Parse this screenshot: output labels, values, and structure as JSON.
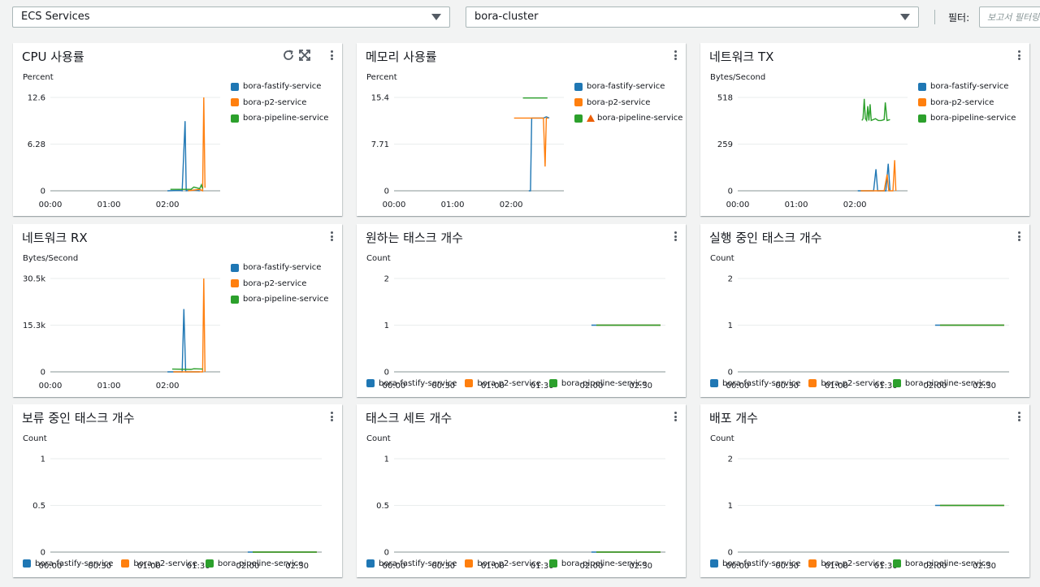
{
  "header": {
    "service_select": "ECS Services",
    "cluster_select": "bora-cluster",
    "filter_label": "필터:",
    "filter_placeholder": "보고서 필터링"
  },
  "colors": {
    "blue": "#1f77b4",
    "orange": "#ff7f0e",
    "green": "#2ca02c"
  },
  "series_names": [
    "bora-fastify-service",
    "bora-p2-service",
    "bora-pipeline-service"
  ],
  "icons": {
    "refresh": "refresh-icon",
    "fullscreen": "fullscreen-icon",
    "menu": "kebab-menu-icon",
    "warning": "warning-icon"
  },
  "chart_data": [
    {
      "type": "line",
      "title": "CPU 사용률",
      "ylabel": "Percent",
      "yticks": [
        "0",
        "6.28",
        "12.6"
      ],
      "ylim": [
        0,
        12.6
      ],
      "xticks": [
        "00:00",
        "01:00",
        "02:00"
      ],
      "x_range_hours": [
        0,
        2.9
      ],
      "legend": "right",
      "series": [
        {
          "name": "bora-fastify-service",
          "color": "#1f77b4",
          "points": [
            [
              2.0,
              0
            ],
            [
              2.2,
              0.05
            ],
            [
              2.25,
              0
            ],
            [
              2.3,
              9.4
            ],
            [
              2.32,
              0
            ],
            [
              2.45,
              0.1
            ],
            [
              2.55,
              0
            ]
          ]
        },
        {
          "name": "bora-p2-service",
          "color": "#ff7f0e",
          "points": [
            [
              2.35,
              0
            ],
            [
              2.55,
              0.2
            ],
            [
              2.6,
              0
            ],
            [
              2.62,
              12.6
            ],
            [
              2.64,
              0.4
            ]
          ]
        },
        {
          "name": "bora-pipeline-service",
          "color": "#2ca02c",
          "points": [
            [
              2.05,
              0.2
            ],
            [
              2.4,
              0.2
            ],
            [
              2.45,
              0.5
            ],
            [
              2.55,
              0.3
            ],
            [
              2.58,
              0.8
            ],
            [
              2.6,
              0.3
            ]
          ]
        }
      ]
    },
    {
      "type": "line",
      "title": "메모리 사용률",
      "ylabel": "Percent",
      "yticks": [
        "0",
        "7.71",
        "15.4"
      ],
      "ylim": [
        0,
        15.4
      ],
      "xticks": [
        "00:00",
        "01:00",
        "02:00"
      ],
      "x_range_hours": [
        0,
        2.9
      ],
      "legend": "right",
      "series": [
        {
          "name": "bora-fastify-service",
          "color": "#1f77b4",
          "points": [
            [
              2.3,
              0
            ],
            [
              2.33,
              0
            ],
            [
              2.35,
              12
            ],
            [
              2.55,
              12
            ],
            [
              2.6,
              12.2
            ],
            [
              2.65,
              12
            ]
          ]
        },
        {
          "name": "bora-p2-service",
          "color": "#ff7f0e",
          "points": [
            [
              2.05,
              12
            ],
            [
              2.3,
              12
            ],
            [
              2.4,
              12
            ],
            [
              2.55,
              12
            ],
            [
              2.58,
              4
            ],
            [
              2.6,
              12
            ],
            [
              2.63,
              12
            ]
          ]
        },
        {
          "name": "bora-pipeline-service",
          "color": "#2ca02c",
          "warning": true,
          "points": [
            [
              2.2,
              15.3
            ],
            [
              2.62,
              15.3
            ]
          ]
        }
      ]
    },
    {
      "type": "line",
      "title": "네트워크 TX",
      "ylabel": "Bytes/Second",
      "yticks": [
        "0",
        "259",
        "518"
      ],
      "ylim": [
        0,
        518
      ],
      "xticks": [
        "00:00",
        "01:00",
        "02:00"
      ],
      "x_range_hours": [
        0,
        2.9
      ],
      "legend": "right",
      "series": [
        {
          "name": "bora-fastify-service",
          "color": "#1f77b4",
          "points": [
            [
              2.05,
              0
            ],
            [
              2.3,
              0
            ],
            [
              2.32,
              0
            ],
            [
              2.36,
              120
            ],
            [
              2.39,
              0
            ],
            [
              2.5,
              0
            ],
            [
              2.53,
              0
            ],
            [
              2.57,
              150
            ],
            [
              2.6,
              0
            ]
          ]
        },
        {
          "name": "bora-p2-service",
          "color": "#ff7f0e",
          "points": [
            [
              2.1,
              0
            ],
            [
              2.4,
              0
            ],
            [
              2.5,
              0
            ],
            [
              2.55,
              90
            ],
            [
              2.58,
              0
            ],
            [
              2.6,
              0
            ],
            [
              2.65,
              0
            ],
            [
              2.68,
              170
            ],
            [
              2.7,
              0
            ]
          ]
        },
        {
          "name": "bora-pipeline-service",
          "color": "#2ca02c",
          "points": [
            [
              2.12,
              390
            ],
            [
              2.14,
              400
            ],
            [
              2.16,
              510
            ],
            [
              2.18,
              400
            ],
            [
              2.2,
              390
            ],
            [
              2.22,
              470
            ],
            [
              2.24,
              390
            ],
            [
              2.26,
              480
            ],
            [
              2.28,
              390
            ],
            [
              2.35,
              400
            ],
            [
              2.4,
              390
            ],
            [
              2.45,
              390
            ],
            [
              2.5,
              395
            ],
            [
              2.52,
              490
            ],
            [
              2.55,
              390
            ],
            [
              2.6,
              395
            ]
          ]
        }
      ]
    },
    {
      "type": "line",
      "title": "네트워크 RX",
      "ylabel": "Bytes/Second",
      "yticks": [
        "0",
        "15.3k",
        "30.5k"
      ],
      "ylim": [
        0,
        30500
      ],
      "xticks": [
        "00:00",
        "01:00",
        "02:00"
      ],
      "x_range_hours": [
        0,
        2.9
      ],
      "legend": "right",
      "series": [
        {
          "name": "bora-fastify-service",
          "color": "#1f77b4",
          "points": [
            [
              2.0,
              0
            ],
            [
              2.25,
              0
            ],
            [
              2.28,
              20500
            ],
            [
              2.31,
              0
            ],
            [
              2.55,
              0
            ]
          ]
        },
        {
          "name": "bora-p2-service",
          "color": "#ff7f0e",
          "points": [
            [
              2.1,
              0
            ],
            [
              2.45,
              0
            ],
            [
              2.6,
              0
            ],
            [
              2.62,
              30500
            ],
            [
              2.64,
              0
            ]
          ]
        },
        {
          "name": "bora-pipeline-service",
          "color": "#2ca02c",
          "points": [
            [
              2.08,
              900
            ],
            [
              2.4,
              800
            ],
            [
              2.45,
              1000
            ],
            [
              2.6,
              900
            ]
          ]
        }
      ]
    },
    {
      "type": "line",
      "title": "원하는 태스크 개수",
      "ylabel": "Count",
      "yticks": [
        "0",
        "1",
        "2"
      ],
      "ylim": [
        0,
        2
      ],
      "xticks": [
        "00:00",
        "00:30",
        "01:00",
        "01:30",
        "02:00",
        "02:30"
      ],
      "x_range_hours": [
        0,
        2.75
      ],
      "legend": "bottom",
      "series": [
        {
          "name": "bora-fastify-service",
          "color": "#1f77b4",
          "points": [
            [
              2.0,
              1
            ],
            [
              2.7,
              1
            ]
          ]
        },
        {
          "name": "bora-p2-service",
          "color": "#ff7f0e",
          "points": [
            [
              2.05,
              1
            ],
            [
              2.7,
              1
            ]
          ]
        },
        {
          "name": "bora-pipeline-service",
          "color": "#2ca02c",
          "points": [
            [
              2.05,
              1
            ],
            [
              2.7,
              1
            ]
          ]
        }
      ]
    },
    {
      "type": "line",
      "title": "실행 중인 태스크 개수",
      "ylabel": "Count",
      "yticks": [
        "0",
        "1",
        "2"
      ],
      "ylim": [
        0,
        2
      ],
      "xticks": [
        "00:00",
        "00:30",
        "01:00",
        "01:30",
        "02:00",
        "02:30"
      ],
      "x_range_hours": [
        0,
        2.75
      ],
      "legend": "bottom",
      "series": [
        {
          "name": "bora-fastify-service",
          "color": "#1f77b4",
          "points": [
            [
              2.0,
              1
            ],
            [
              2.7,
              1
            ]
          ]
        },
        {
          "name": "bora-p2-service",
          "color": "#ff7f0e",
          "points": [
            [
              2.05,
              1
            ],
            [
              2.7,
              1
            ]
          ]
        },
        {
          "name": "bora-pipeline-service",
          "color": "#2ca02c",
          "points": [
            [
              2.05,
              1
            ],
            [
              2.7,
              1
            ]
          ]
        }
      ]
    },
    {
      "type": "line",
      "title": "보류 중인 태스크 개수",
      "ylabel": "Count",
      "yticks": [
        "0",
        "0.5",
        "1"
      ],
      "ylim": [
        0,
        1
      ],
      "xticks": [
        "00:00",
        "00:30",
        "01:00",
        "01:30",
        "02:00",
        "02:30"
      ],
      "x_range_hours": [
        0,
        2.75
      ],
      "legend": "bottom",
      "series": [
        {
          "name": "bora-fastify-service",
          "color": "#1f77b4",
          "points": [
            [
              2.0,
              0
            ],
            [
              2.7,
              0
            ]
          ]
        },
        {
          "name": "bora-p2-service",
          "color": "#ff7f0e",
          "points": [
            [
              2.05,
              0
            ],
            [
              2.7,
              0
            ]
          ]
        },
        {
          "name": "bora-pipeline-service",
          "color": "#2ca02c",
          "points": [
            [
              2.05,
              0
            ],
            [
              2.7,
              0
            ]
          ]
        }
      ]
    },
    {
      "type": "line",
      "title": "태스크 세트 개수",
      "ylabel": "Count",
      "yticks": [
        "0",
        "0.5",
        "1"
      ],
      "ylim": [
        0,
        1
      ],
      "xticks": [
        "00:00",
        "00:30",
        "01:00",
        "01:30",
        "02:00",
        "02:30"
      ],
      "x_range_hours": [
        0,
        2.75
      ],
      "legend": "bottom",
      "series": [
        {
          "name": "bora-fastify-service",
          "color": "#1f77b4",
          "points": [
            [
              2.0,
              0
            ],
            [
              2.7,
              0
            ]
          ]
        },
        {
          "name": "bora-p2-service",
          "color": "#ff7f0e",
          "points": [
            [
              2.05,
              0
            ],
            [
              2.7,
              0
            ]
          ]
        },
        {
          "name": "bora-pipeline-service",
          "color": "#2ca02c",
          "points": [
            [
              2.05,
              0
            ],
            [
              2.7,
              0
            ]
          ]
        }
      ]
    },
    {
      "type": "line",
      "title": "배포 개수",
      "ylabel": "Count",
      "yticks": [
        "0",
        "1",
        "2"
      ],
      "ylim": [
        0,
        2
      ],
      "xticks": [
        "00:00",
        "00:30",
        "01:00",
        "01:30",
        "02:00",
        "02:30"
      ],
      "x_range_hours": [
        0,
        2.75
      ],
      "legend": "bottom",
      "series": [
        {
          "name": "bora-fastify-service",
          "color": "#1f77b4",
          "points": [
            [
              2.0,
              1
            ],
            [
              2.7,
              1
            ]
          ]
        },
        {
          "name": "bora-p2-service",
          "color": "#ff7f0e",
          "points": [
            [
              2.05,
              1
            ],
            [
              2.7,
              1
            ]
          ]
        },
        {
          "name": "bora-pipeline-service",
          "color": "#2ca02c",
          "points": [
            [
              2.05,
              1
            ],
            [
              2.7,
              1
            ]
          ]
        }
      ]
    }
  ]
}
